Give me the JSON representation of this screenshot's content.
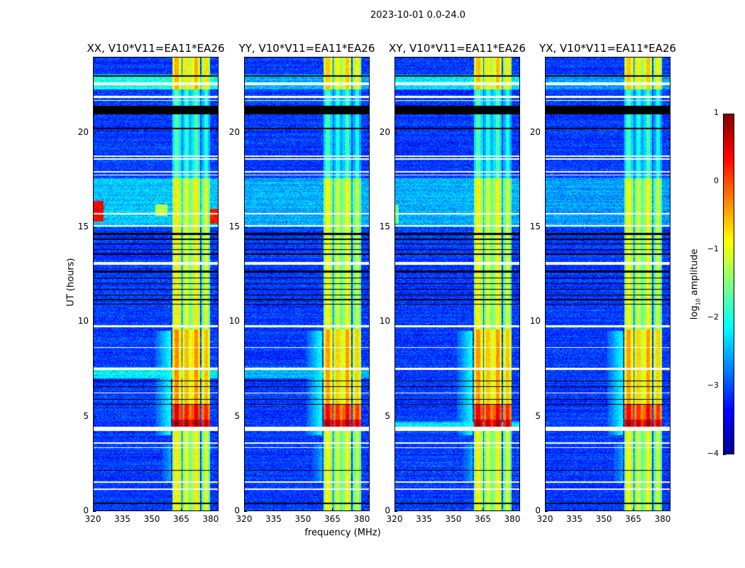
{
  "chart_data": {
    "type": "heatmap",
    "title": "2023-10-01 0.0-24.0",
    "xlabel": "frequency (MHz)",
    "ylabel": "UT (hours)",
    "xlim": [
      320,
      384
    ],
    "ylim": [
      0,
      24
    ],
    "xticks": [
      "320",
      "335",
      "350",
      "365",
      "380"
    ],
    "xtick_values": [
      320,
      335,
      350,
      365,
      380
    ],
    "yticks": [
      "0",
      "5",
      "10",
      "15",
      "20"
    ],
    "ytick_values": [
      0,
      5,
      10,
      15,
      20
    ],
    "colormap": "jet",
    "colorbar": {
      "label": "log10 amplitude",
      "label_main": "log",
      "label_sub": "10",
      "label_rest": " amplitude",
      "range": [
        -4,
        1
      ],
      "ticks": [
        "1",
        "0",
        "−1",
        "−2",
        "−3",
        "−4"
      ],
      "tick_values": [
        1,
        0,
        -1,
        -2,
        -3,
        -4
      ]
    },
    "panels": [
      {
        "title": "XX, V10*V11=EA11*EA26",
        "rfi_offset": 0.1,
        "broadband": [
          [
            22.3,
            23.1,
            -2.0
          ],
          [
            15.0,
            17.6,
            -2.4
          ],
          [
            7.0,
            7.6,
            -2.2
          ]
        ],
        "hotspots": [
          {
            "hours": [
              15.3,
              16.4
            ],
            "mhz": [
              320,
              325
            ],
            "level": 0.4
          },
          {
            "hours": [
              15.2,
              16.0
            ],
            "mhz": [
              380,
              384
            ],
            "level": 0.3
          },
          {
            "hours": [
              15.6,
              16.2
            ],
            "mhz": [
              352,
              358
            ],
            "level": -1.2
          }
        ]
      },
      {
        "title": "YY, V10*V11=EA11*EA26",
        "rfi_offset": 0.0,
        "broadband": [
          [
            22.3,
            23.1,
            -2.5
          ],
          [
            15.0,
            17.6,
            -2.5
          ],
          [
            7.0,
            7.6,
            -2.5
          ]
        ],
        "hotspots": []
      },
      {
        "title": "XY, V10*V11=EA11*EA26",
        "rfi_offset": 0.05,
        "broadband": [
          [
            22.3,
            23.1,
            -2.2
          ],
          [
            15.0,
            17.6,
            -2.5
          ],
          [
            4.4,
            4.7,
            -2.3
          ]
        ],
        "hotspots": [
          {
            "hours": [
              15.2,
              16.2
            ],
            "mhz": [
              320,
              322
            ],
            "level": -1.6
          }
        ]
      },
      {
        "title": "YX, V10*V11=EA11*EA26",
        "rfi_offset": 0.0,
        "broadband": [
          [
            22.3,
            23.1,
            -2.6
          ],
          [
            15.0,
            17.6,
            -2.6
          ]
        ],
        "hotspots": []
      }
    ],
    "rfi_bands_mhz": [
      [
        360.5,
        365.2
      ],
      [
        365.6,
        370.3
      ],
      [
        370.6,
        375.0
      ],
      [
        375.7,
        380.0
      ]
    ],
    "rfi_level_by_hour": [
      [
        0,
        4.3,
        -1.0
      ],
      [
        4.3,
        4.8,
        0.8
      ],
      [
        4.8,
        5.6,
        0.3
      ],
      [
        5.6,
        9.6,
        -0.5
      ],
      [
        9.6,
        17.6,
        -1.0
      ],
      [
        17.6,
        22.3,
        -1.9
      ],
      [
        22.3,
        24,
        -0.7
      ]
    ],
    "edge_rise": [
      [
        4.0,
        9.5,
        352,
        360,
        -2.0
      ],
      [
        1.5,
        3.5,
        355,
        360,
        -2.5
      ]
    ],
    "background_level": -3.1,
    "flagged_blank_hours": [
      [
        22.55,
        22.7
      ],
      [
        21.85,
        21.95
      ],
      [
        21.7,
        21.75
      ],
      [
        18.75,
        18.8
      ],
      [
        18.6,
        18.65
      ],
      [
        17.9,
        18.0
      ],
      [
        17.75,
        17.8
      ],
      [
        15.7,
        15.78
      ],
      [
        15.05,
        15.12
      ],
      [
        13.0,
        13.15
      ],
      [
        9.7,
        9.8
      ],
      [
        8.6,
        8.65
      ],
      [
        7.45,
        7.55
      ],
      [
        6.2,
        6.25
      ],
      [
        4.2,
        4.45
      ],
      [
        3.55,
        3.6
      ],
      [
        3.3,
        3.35
      ],
      [
        1.45,
        1.55
      ],
      [
        1.1,
        1.15
      ]
    ],
    "flagged_zero_hours": [
      [
        23.0,
        23.05
      ],
      [
        21.0,
        21.45
      ],
      [
        20.2,
        20.28
      ],
      [
        14.6,
        14.7
      ],
      [
        14.35,
        14.4
      ],
      [
        14.1,
        14.15
      ],
      [
        13.8,
        13.85
      ],
      [
        13.55,
        13.6
      ],
      [
        12.6,
        12.7
      ],
      [
        12.3,
        12.35
      ],
      [
        12.0,
        12.05
      ],
      [
        11.7,
        11.75
      ],
      [
        11.4,
        11.45
      ],
      [
        11.15,
        11.2
      ],
      [
        10.9,
        10.95
      ],
      [
        6.85,
        6.9
      ],
      [
        6.55,
        6.6
      ],
      [
        5.85,
        5.9
      ],
      [
        5.6,
        5.65
      ],
      [
        2.1,
        2.15
      ],
      [
        0.35,
        0.42
      ]
    ]
  }
}
